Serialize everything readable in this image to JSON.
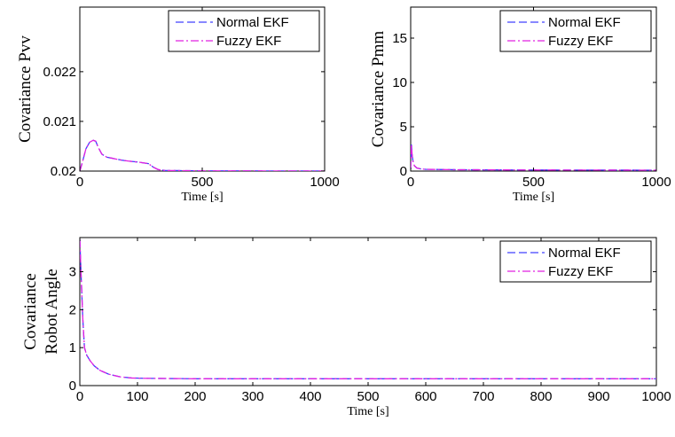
{
  "chart_data": [
    {
      "id": "pvv",
      "type": "line",
      "xlabel": "Time [s]",
      "ylabel": [
        "Covariance Pvv"
      ],
      "xlim": [
        0,
        1000
      ],
      "ylim": [
        0.02,
        0.0233
      ],
      "xticks": [
        0,
        500,
        1000
      ],
      "yticks": [
        0.02,
        0.021,
        0.022
      ],
      "ytick_labels": [
        "0.02",
        "0.021",
        "0.022"
      ],
      "grid": false,
      "legend_position": "top-right",
      "series": [
        {
          "name": "Normal EKF",
          "color": "#4040ff",
          "style": "dashed",
          "x": [
            0,
            10,
            25,
            40,
            55,
            65,
            75,
            90,
            110,
            140,
            170,
            200,
            240,
            280,
            300,
            320,
            350,
            400,
            500,
            700,
            1000
          ],
          "y": [
            0.02,
            0.02017,
            0.02045,
            0.02058,
            0.02062,
            0.0206,
            0.02048,
            0.02034,
            0.02028,
            0.02025,
            0.02022,
            0.0202,
            0.02018,
            0.02015,
            0.02008,
            0.02003,
            0.02001,
            0.02001,
            0.020005,
            0.020003,
            0.020002
          ]
        },
        {
          "name": "Fuzzy EKF",
          "color": "#e020e0",
          "style": "dashdot",
          "x": [
            0,
            10,
            25,
            40,
            55,
            65,
            75,
            90,
            110,
            140,
            170,
            200,
            240,
            280,
            300,
            320,
            350,
            400,
            500,
            700,
            1000
          ],
          "y": [
            0.02,
            0.02017,
            0.02045,
            0.02058,
            0.02062,
            0.0206,
            0.02048,
            0.02034,
            0.02028,
            0.02025,
            0.02022,
            0.0202,
            0.02018,
            0.02015,
            0.02008,
            0.02003,
            0.02001,
            0.02001,
            0.020005,
            0.020003,
            0.020002
          ]
        }
      ]
    },
    {
      "id": "pmm",
      "type": "line",
      "xlabel": "Time [s]",
      "ylabel": [
        "Covariance Pmm"
      ],
      "xlim": [
        0,
        1000
      ],
      "ylim": [
        0,
        18.5
      ],
      "xticks": [
        0,
        500,
        1000
      ],
      "yticks": [
        0,
        5,
        10,
        15
      ],
      "ytick_labels": [
        "0",
        "5",
        "10",
        "15"
      ],
      "grid": false,
      "legend_position": "top-right",
      "series": [
        {
          "name": "Normal EKF",
          "color": "#4040ff",
          "style": "dashed",
          "x": [
            0,
            3,
            6,
            10,
            15,
            25,
            40,
            60,
            100,
            200,
            500,
            1000
          ],
          "y": [
            0.2,
            3.0,
            1.8,
            1.0,
            0.6,
            0.35,
            0.25,
            0.2,
            0.18,
            0.15,
            0.12,
            0.1
          ]
        },
        {
          "name": "Fuzzy EKF",
          "color": "#e020e0",
          "style": "dashdot",
          "x": [
            0,
            3,
            6,
            10,
            15,
            25,
            40,
            60,
            100,
            200,
            500,
            1000
          ],
          "y": [
            0.2,
            3.0,
            1.8,
            1.0,
            0.6,
            0.35,
            0.25,
            0.2,
            0.18,
            0.15,
            0.12,
            0.1
          ]
        }
      ]
    },
    {
      "id": "angle",
      "type": "line",
      "xlabel": "Time [s]",
      "ylabel": [
        "Covariance",
        "Robot Angle"
      ],
      "xlim": [
        0,
        1000
      ],
      "ylim": [
        0,
        3.9
      ],
      "xticks": [
        0,
        100,
        200,
        300,
        400,
        500,
        600,
        700,
        800,
        900,
        1000
      ],
      "yticks": [
        0,
        1,
        2,
        3
      ],
      "ytick_labels": [
        "0",
        "1",
        "2",
        "3"
      ],
      "grid": false,
      "legend_position": "top-right",
      "series": [
        {
          "name": "Normal EKF",
          "color": "#4040ff",
          "style": "dashed",
          "x": [
            0,
            2,
            5,
            8,
            12,
            18,
            25,
            35,
            50,
            70,
            90,
            120,
            200,
            400,
            700,
            1000
          ],
          "y": [
            3.85,
            3.0,
            1.8,
            1.0,
            0.8,
            0.65,
            0.52,
            0.4,
            0.3,
            0.23,
            0.2,
            0.19,
            0.18,
            0.18,
            0.18,
            0.18
          ]
        },
        {
          "name": "Fuzzy EKF",
          "color": "#e020e0",
          "style": "dashdot",
          "x": [
            0,
            2,
            5,
            8,
            12,
            18,
            25,
            35,
            50,
            70,
            90,
            120,
            200,
            400,
            700,
            1000
          ],
          "y": [
            3.85,
            3.0,
            1.8,
            1.0,
            0.8,
            0.65,
            0.52,
            0.4,
            0.3,
            0.23,
            0.2,
            0.19,
            0.18,
            0.18,
            0.18,
            0.18
          ]
        }
      ]
    }
  ]
}
